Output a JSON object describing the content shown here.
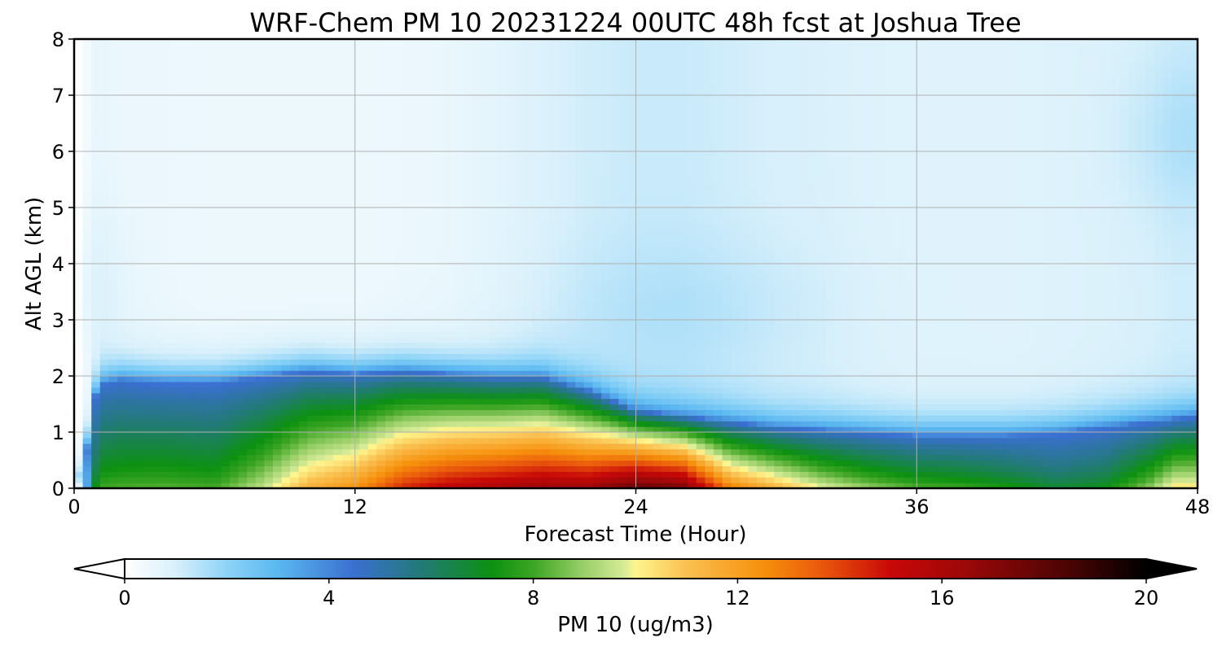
{
  "chart_data": {
    "type": "heatmap",
    "title": "WRF-Chem PM 10  20231224 00UTC 48h fcst at Joshua Tree",
    "xlabel": "Forecast Time (Hour)",
    "ylabel": "Alt AGL (km)",
    "xlim": [
      0,
      48
    ],
    "ylim": [
      0,
      8
    ],
    "x_ticks": [
      "0",
      "12",
      "24",
      "36",
      "48"
    ],
    "y_ticks": [
      "0",
      "1",
      "2",
      "3",
      "4",
      "5",
      "6",
      "7",
      "8"
    ],
    "grid": true,
    "colorbar": {
      "label": "PM 10  (ug/m3)",
      "range": [
        0,
        20
      ],
      "ticks": [
        "0",
        "4",
        "8",
        "12",
        "16",
        "20"
      ],
      "extend": "both",
      "stops": [
        {
          "v": 0,
          "c": "#ffffff"
        },
        {
          "v": 1,
          "c": "#d8f0fb"
        },
        {
          "v": 2,
          "c": "#8dd3f7"
        },
        {
          "v": 3,
          "c": "#5ab8f0"
        },
        {
          "v": 4.5,
          "c": "#3a6fd0"
        },
        {
          "v": 5.8,
          "c": "#227a77"
        },
        {
          "v": 7.2,
          "c": "#0c9110"
        },
        {
          "v": 8,
          "c": "#3da524"
        },
        {
          "v": 9,
          "c": "#9bd06a"
        },
        {
          "v": 9.8,
          "c": "#d8eb98"
        },
        {
          "v": 10,
          "c": "#fff58e"
        },
        {
          "v": 11,
          "c": "#fac050"
        },
        {
          "v": 12.5,
          "c": "#f6900c"
        },
        {
          "v": 13.5,
          "c": "#ec600c"
        },
        {
          "v": 15,
          "c": "#c80808"
        },
        {
          "v": 16.5,
          "c": "#9a0808"
        },
        {
          "v": 18.5,
          "c": "#4a0404"
        },
        {
          "v": 20,
          "c": "#000000"
        }
      ]
    },
    "times": [
      0,
      0.5,
      1,
      2,
      4,
      6,
      8,
      10,
      12,
      14,
      16,
      18,
      20,
      22,
      24,
      26,
      28,
      30,
      32,
      34,
      36,
      38,
      40,
      42,
      44,
      46,
      47,
      48
    ],
    "mixing_height_km": [
      0,
      0.6,
      1.85,
      1.95,
      1.9,
      1.9,
      2.0,
      2.1,
      2.05,
      2.1,
      2.05,
      2.0,
      2.0,
      1.75,
      1.4,
      1.3,
      1.2,
      1.1,
      1.05,
      1.0,
      0.95,
      0.95,
      0.95,
      1.0,
      1.1,
      1.2,
      1.25,
      1.3
    ],
    "surface_max_ugm3": [
      0,
      3,
      8,
      8.2,
      8.3,
      8.1,
      9.5,
      11.5,
      12.5,
      14.5,
      15.5,
      16,
      16.5,
      16.5,
      18,
      17.5,
      13,
      11.5,
      10,
      9,
      8.3,
      8.0,
      7.5,
      6.8,
      7.2,
      9,
      10.5,
      10.5
    ],
    "aloft_conc_ugm3": [
      0,
      0.3,
      0.6,
      0.5,
      0.5,
      0.45,
      0.45,
      0.45,
      0.45,
      0.5,
      0.55,
      0.7,
      0.9,
      1.1,
      1.2,
      1.2,
      1.1,
      1.0,
      0.95,
      0.85,
      0.8,
      0.8,
      0.8,
      0.85,
      0.9,
      1.0,
      1.1,
      1.1
    ]
  }
}
